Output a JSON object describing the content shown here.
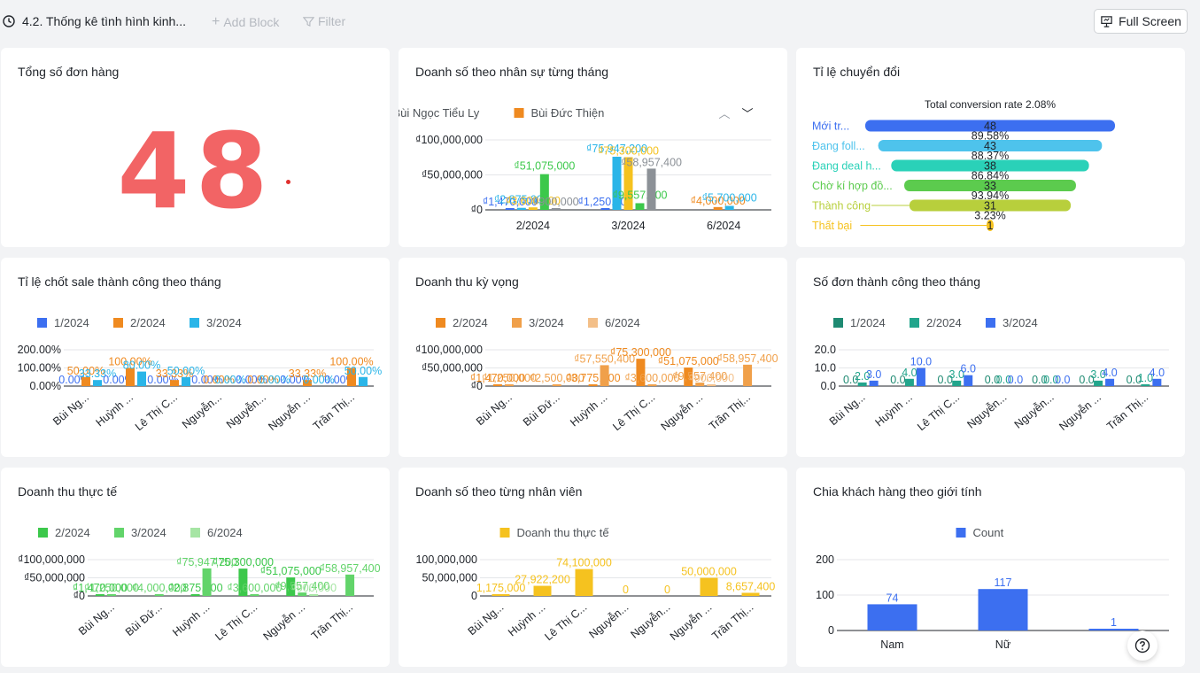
{
  "topbar": {
    "title": "4.2. Thống kê tình hình kinh...",
    "add_block": "Add Block",
    "filter": "Filter",
    "full_screen": "Full Screen"
  },
  "colors": {
    "blue": "#3c6ff0",
    "orange": "#ef8a20",
    "cyan": "#2ab5e8",
    "green": "#3cc84b",
    "yellow": "#f5c21f",
    "gray": "#8c9197",
    "red_big": "#f26465",
    "teal_dark": "#1e8a72",
    "teal": "#22a58c",
    "grid": "#e4e6e9"
  },
  "cards": [
    {
      "id": "total-orders",
      "title": "Tổng số đơn hàng",
      "value": "48"
    },
    {
      "id": "sales-by-staff-month",
      "title": "Doanh số theo nhân sự từng tháng",
      "legend": [
        "Bùi Ngọc Tiểu Ly",
        "Bùi Đức Thiện"
      ],
      "legend_colors": [
        "#3c6ff0",
        "#ef8a20"
      ],
      "chart_data": {
        "type": "bar",
        "categories": [
          "2/2024",
          "3/2024",
          "6/2024"
        ],
        "y_ticks": [
          "₫100,000,000",
          "₫50,000,000",
          "₫0"
        ],
        "ylim": [
          0,
          100000000
        ],
        "groups": [
          {
            "category": "2/2024",
            "bars": [
              {
                "value": 1470000,
                "label": "₫1,470,000",
                "color": "#3c6ff0"
              },
              {
                "value": 2875000,
                "label": "₫2,875,000",
                "color": "#2ab5e8"
              },
              {
                "value": 3600000,
                "label": "₫3,600,000",
                "color": "#f5c21f"
              },
              {
                "value": 51075000,
                "label": "₫51,075,000",
                "color": "#3cc84b"
              },
              {
                "value": 900000,
                "label": "₫900,000",
                "color": "#8c9197"
              }
            ]
          },
          {
            "category": "3/2024",
            "bars": [
              {
                "value": 1250000,
                "label": "₫1,250,000",
                "color": "#3c6ff0"
              },
              {
                "value": 75947200,
                "label": "₫75,947,200",
                "color": "#2ab5e8"
              },
              {
                "value": 75300000,
                "label": "₫75,300,000",
                "color": "#f5c21f"
              },
              {
                "value": 9557400,
                "label": "₫9,557,400",
                "color": "#3cc84b"
              },
              {
                "value": 58957400,
                "label": "₫58,957,400",
                "color": "#8c9197"
              }
            ]
          },
          {
            "category": "6/2024",
            "bars": [
              {
                "value": 4000000,
                "label": "₫4,000,000",
                "color": "#ef8a20"
              },
              {
                "value": 5700000,
                "label": "₫5,700,000",
                "color": "#2ab5e8"
              }
            ]
          }
        ]
      }
    },
    {
      "id": "conversion-rate",
      "title": "Tỉ lệ chuyển đổi",
      "chart_data": {
        "type": "funnel",
        "title": "Total conversion rate 2.08%",
        "stages": [
          {
            "label": "Mới tr...",
            "value": 48,
            "color": "#3c6ff0"
          },
          {
            "label": "Đang foll...",
            "value": 43,
            "color": "#4ec3ec"
          },
          {
            "label": "Đang deal h...",
            "value": 38,
            "color": "#2ad1b8"
          },
          {
            "label": "Chờ kí hợp đồ...",
            "value": 33,
            "color": "#5ccb4e"
          },
          {
            "label": "Thành công",
            "value": 31,
            "color": "#b8cf3c"
          },
          {
            "label": "Thất bại",
            "value": 1,
            "color": "#f5c21f"
          }
        ],
        "rates": [
          "89.58%",
          "88.37%",
          "86.84%",
          "93.94%",
          "3.23%"
        ]
      }
    },
    {
      "id": "close-rate-by-month",
      "title": "Tỉ lệ chốt sale thành công theo tháng",
      "legend": [
        "1/2024",
        "2/2024",
        "3/2024"
      ],
      "legend_colors": [
        "#3c6ff0",
        "#ef8a20",
        "#2ab5e8"
      ],
      "chart_data": {
        "type": "bar",
        "categories": [
          "Bùi Ng...",
          "Huỳnh ...",
          "Lê Thị C...",
          "Nguyễn...",
          "Nguyễn...",
          "Nguyễn ...",
          "Trần Thị..."
        ],
        "y_ticks": [
          "200.00%",
          "100.00%",
          "0.00%"
        ],
        "ylim": [
          0,
          200
        ],
        "series": [
          {
            "name": "1/2024",
            "values": [
              0,
              0,
              0,
              0,
              0,
              0,
              0
            ],
            "labels": [
              "0.00%",
              "0.00%",
              "0.00%",
              "0.00%",
              "0.00%",
              "0.00%",
              "0.00%"
            ]
          },
          {
            "name": "2/2024",
            "values": [
              50,
              100,
              33.33,
              0,
              0,
              33.33,
              100
            ],
            "labels": [
              "50.00%",
              "100.00%",
              "33.33%",
              "0.00%",
              "0.00%",
              "33.33%",
              "100.00%"
            ]
          },
          {
            "name": "3/2024",
            "values": [
              33.33,
              80,
              50,
              0,
              0,
              0,
              50
            ],
            "labels": [
              "33.33%",
              "80.00%",
              "50.00%",
              "0.00%",
              "0.00%",
              "0.00%",
              "50.00%"
            ]
          }
        ]
      }
    },
    {
      "id": "expected-revenue",
      "title": "Doanh thu kỳ vọng",
      "legend": [
        "2/2024",
        "3/2024",
        "6/2024"
      ],
      "legend_colors": [
        "#ef8a20",
        "#f0a04a",
        "#f3bf88"
      ],
      "chart_data": {
        "type": "bar",
        "categories": [
          "Bùi Ng...",
          "Bùi Đứ...",
          "Huỳnh ...",
          "Lê Thị C...",
          "Nguyễn ...",
          "Trần Thị..."
        ],
        "y_ticks": [
          "₫100,000,000",
          "₫50,000,000",
          "₫0"
        ],
        "ylim": [
          0,
          100000000
        ],
        "series": [
          {
            "name": "2/2024",
            "values": [
              1470000,
              0,
              3775000,
              75300000,
              51075000,
              0
            ],
            "labels": [
              "₫1,470,000",
              "",
              "₫3,775,000",
              "₫75,300,000",
              "₫51,075,000",
              ""
            ]
          },
          {
            "name": "3/2024",
            "values": [
              1250000,
              2500000,
              57550400,
              3600000,
              9557400,
              58957400
            ],
            "labels": [
              "₫1,250,000",
              "₫2,500,000",
              "₫57,550,400",
              "₫3,600,000",
              "₫9,557,400",
              "₫58,957,400"
            ]
          },
          {
            "name": "6/2024",
            "values": [
              0,
              0,
              0,
              0,
              900000,
              0
            ],
            "labels": [
              "",
              "",
              "",
              "",
              "₫900,000",
              ""
            ]
          }
        ]
      }
    },
    {
      "id": "successful-orders-by-month",
      "title": "Số đơn thành công theo tháng",
      "legend": [
        "1/2024",
        "2/2024",
        "3/2024"
      ],
      "legend_colors": [
        "#1e8a72",
        "#22a58c",
        "#3c6ff0"
      ],
      "chart_data": {
        "type": "bar",
        "categories": [
          "Bùi Ng...",
          "Huỳnh ...",
          "Lê Thị C...",
          "Nguyễn...",
          "Nguyễn...",
          "Nguyễn ...",
          "Trần Thị..."
        ],
        "y_ticks": [
          "20.0",
          "10.0",
          "0.0"
        ],
        "ylim": [
          0,
          20
        ],
        "series": [
          {
            "name": "1/2024",
            "values": [
              0,
              0,
              0,
              0,
              0,
              0,
              0
            ],
            "labels": [
              "0.0",
              "0.0",
              "0.0",
              "0.0",
              "0.0",
              "0.0",
              "0.0"
            ]
          },
          {
            "name": "2/2024",
            "values": [
              2,
              4,
              3,
              0,
              0,
              3,
              1
            ],
            "labels": [
              "2.0",
              "4.0",
              "3.0",
              "0.0",
              "0.0",
              "3.0",
              "1.0"
            ]
          },
          {
            "name": "3/2024",
            "values": [
              3,
              10,
              6,
              0,
              0,
              4,
              4
            ],
            "labels": [
              "3.0",
              "10.0",
              "6.0",
              "0.0",
              "0.0",
              "4.0",
              "4.0"
            ]
          }
        ]
      }
    },
    {
      "id": "actual-revenue",
      "title": "Doanh thu thực tế",
      "legend": [
        "2/2024",
        "3/2024",
        "6/2024"
      ],
      "legend_colors": [
        "#3cc84b",
        "#62d46a",
        "#a6e5a4"
      ],
      "chart_data": {
        "type": "bar",
        "categories": [
          "Bùi Ng...",
          "Bùi Đứ...",
          "Huỳnh ...",
          "Lê Thị C...",
          "Nguyễn ...",
          "Trần Thị..."
        ],
        "y_ticks": [
          "₫100,000,000",
          "₫50,000,000",
          "₫0"
        ],
        "ylim": [
          0,
          100000000
        ],
        "series": [
          {
            "name": "2/2024",
            "values": [
              1470000,
              0,
              2875000,
              75300000,
              51075000,
              0
            ],
            "labels": [
              "₫1,470,000",
              "",
              "₫2,875,000",
              "₫75,300,000",
              "₫51,075,000",
              ""
            ]
          },
          {
            "name": "3/2024",
            "values": [
              1250000,
              4000000,
              75947200,
              3600000,
              9557400,
              58957400
            ],
            "labels": [
              "₫1,250,000",
              "₫4,000,000",
              "₫75,947,200",
              "₫3,600,000",
              "₫9,557,400",
              "₫58,957,400"
            ]
          },
          {
            "name": "6/2024",
            "values": [
              0,
              0,
              0,
              0,
              900000,
              0
            ],
            "labels": [
              "",
              "",
              "",
              "",
              "₫900,000",
              ""
            ]
          }
        ]
      }
    },
    {
      "id": "sales-by-staff",
      "title": "Doanh số theo từng nhân viên",
      "legend": [
        "Doanh thu thực tế"
      ],
      "legend_colors": [
        "#f5c21f"
      ],
      "chart_data": {
        "type": "bar",
        "categories": [
          "Bùi Ng...",
          "Huỳnh ...",
          "Lê Thị C...",
          "Nguyễn...",
          "Nguyễn...",
          "Nguyễn ...",
          "Trần Thị..."
        ],
        "y_ticks": [
          "100,000,000",
          "50,000,000",
          "0"
        ],
        "ylim": [
          0,
          100000000
        ],
        "series": [
          {
            "name": "Doanh thu thực tế",
            "values": [
              1175000,
              27922200,
              74100000,
              0,
              0,
              50000000,
              8657400
            ],
            "labels": [
              "1,175,000",
              "27,922,200",
              "74,100,000",
              "0",
              "0",
              "50,000,000",
              "8,657,400"
            ]
          }
        ]
      }
    },
    {
      "id": "customers-by-gender",
      "title": "Chia khách hàng theo giới tính",
      "legend": [
        "Count"
      ],
      "legend_colors": [
        "#3c6ff0"
      ],
      "chart_data": {
        "type": "bar",
        "categories": [
          "Nam",
          "Nữ",
          ""
        ],
        "y_ticks": [
          "200",
          "100",
          "0"
        ],
        "ylim": [
          0,
          200
        ],
        "series": [
          {
            "name": "Count",
            "values": [
              74,
              117,
              1
            ],
            "labels": [
              "74",
              "117",
              "1"
            ]
          }
        ]
      }
    }
  ]
}
